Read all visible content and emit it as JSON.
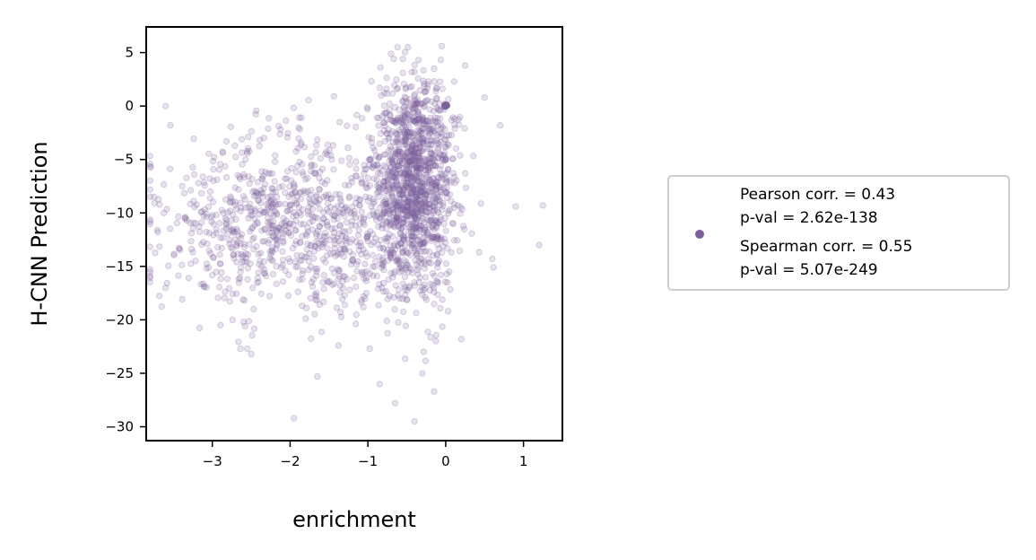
{
  "chart_data": {
    "type": "scatter",
    "title": "",
    "xlabel": "enrichment",
    "ylabel": "H-CNN Prediction",
    "xlim": [
      -3.85,
      1.5
    ],
    "ylim": [
      -31.3,
      7.4
    ],
    "xticks": [
      -3,
      -2,
      -1,
      0,
      1
    ],
    "yticks": [
      5,
      0,
      -5,
      -10,
      -15,
      -20,
      -25,
      -30
    ],
    "xtick_labels": [
      "−3",
      "−2",
      "−1",
      "0",
      "1"
    ],
    "ytick_labels": [
      "5",
      "0",
      "−5",
      "−10",
      "−15",
      "−20",
      "−25",
      "−30"
    ],
    "grid": false,
    "legend_position": "right",
    "series": [
      {
        "color": "#7b5f9a",
        "point_alpha": 0.18,
        "approx_points": 2200,
        "clusters": [
          {
            "x_mean": -0.4,
            "x_sd": 0.25,
            "y_mean": -7.0,
            "y_sd": 5.5,
            "share": 0.55
          },
          {
            "x_mean": -1.9,
            "x_sd": 0.9,
            "y_mean": -11.0,
            "y_sd": 4.2,
            "share": 0.45
          }
        ],
        "highlight_point": {
          "x": 0.0,
          "y": 0.0
        },
        "outliers": [
          {
            "x": -0.05,
            "y": 5.6
          },
          {
            "x": -0.55,
            "y": 4.4
          },
          {
            "x": -0.35,
            "y": 4.3
          },
          {
            "x": -0.15,
            "y": 3.5
          },
          {
            "x": 0.25,
            "y": 3.8
          },
          {
            "x": -3.6,
            "y": 0.0
          },
          {
            "x": -3.75,
            "y": -8.5
          },
          {
            "x": -3.7,
            "y": -11.8
          },
          {
            "x": 1.25,
            "y": -9.3
          },
          {
            "x": 1.2,
            "y": -13.0
          },
          {
            "x": 0.9,
            "y": -9.4
          },
          {
            "x": 0.6,
            "y": -14.3
          },
          {
            "x": -1.95,
            "y": -29.2
          },
          {
            "x": -0.4,
            "y": -29.5
          },
          {
            "x": -0.65,
            "y": -27.8
          },
          {
            "x": -0.15,
            "y": -26.7
          },
          {
            "x": -1.65,
            "y": -25.3
          },
          {
            "x": -2.5,
            "y": -23.2
          },
          {
            "x": -2.55,
            "y": -22.7
          },
          {
            "x": 0.2,
            "y": -21.8
          },
          {
            "x": -0.85,
            "y": -26.0
          },
          {
            "x": -0.3,
            "y": -25.0
          },
          {
            "x": 0.7,
            "y": -1.8
          },
          {
            "x": 0.5,
            "y": 0.8
          }
        ]
      }
    ],
    "legend": {
      "lines": [
        "Pearson corr. = 0.43",
        "p-val = 2.62e-138",
        "Spearman corr. = 0.55",
        "p-val = 5.07e-249"
      ]
    }
  }
}
